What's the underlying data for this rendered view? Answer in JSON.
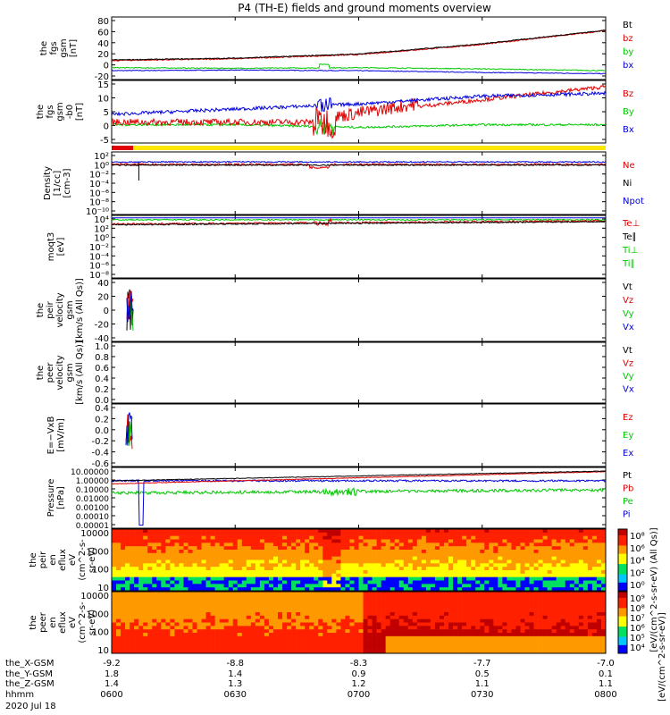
{
  "title": "P4 (TH-E) fields and ground moments overview",
  "colors": {
    "black": "#000000",
    "red": "#e00000",
    "green": "#00c800",
    "blue": "#0000dc",
    "yellow": "#ffe600",
    "white": "#ffffff"
  },
  "panels": [
    {
      "id": "fgs",
      "ylabel_lines": [
        "the",
        "fgs",
        "gsm",
        "[nT]"
      ],
      "yticks": [
        "80",
        "60",
        "40",
        "20",
        "0",
        "-20"
      ],
      "yrange": [
        -20,
        85
      ],
      "legend": [
        {
          "label": "Bt",
          "color": "black"
        },
        {
          "label": "bz",
          "color": "red"
        },
        {
          "label": "by",
          "color": "green"
        },
        {
          "label": "bx",
          "color": "blue"
        }
      ]
    },
    {
      "id": "fgs-dsl",
      "ylabel_lines": [
        "the",
        "fgs",
        "gsm",
        "-b0",
        "[nT]"
      ],
      "yticks": [
        "15",
        "10",
        "5",
        "0",
        "-5"
      ],
      "yrange": [
        -8,
        16
      ],
      "legend": [
        {
          "label": "Bz",
          "color": "red"
        },
        {
          "label": "By",
          "color": "green"
        },
        {
          "label": "Bx",
          "color": "blue"
        }
      ]
    },
    {
      "id": "density",
      "ylabel_lines": [
        "Density",
        "[1/cc]",
        "[cm-3]"
      ],
      "yticks": [
        "10²",
        "10⁰",
        "10⁻²",
        "10⁻⁴",
        "10⁻⁶",
        "10⁻⁸",
        "10⁻¹⁰"
      ],
      "legend": [
        {
          "label": "Ne",
          "color": "red"
        },
        {
          "label": "Ni",
          "color": "black"
        },
        {
          "label": "Npot",
          "color": "blue"
        }
      ]
    },
    {
      "id": "temperature",
      "ylabel_lines": [
        "moqt3",
        "[eV]"
      ],
      "yticks": [
        "10⁴",
        "10²",
        "10⁰",
        "10⁻²",
        "10⁻⁴",
        "10⁻⁶",
        "10⁻⁸"
      ],
      "legend": [
        {
          "label": "Te⊥",
          "color": "red"
        },
        {
          "label": "Te∥",
          "color": "black"
        },
        {
          "label": "Ti⊥",
          "color": "green"
        },
        {
          "label": "Ti∥",
          "color": "green"
        }
      ]
    },
    {
      "id": "peir-velocity",
      "ylabel_lines": [
        "the",
        "peir",
        "velocity",
        "gsm",
        "[km/s (All Qs)]"
      ],
      "yticks": [
        "40",
        "20",
        "0",
        "-20",
        "-40"
      ],
      "legend": [
        {
          "label": "Vt",
          "color": "black"
        },
        {
          "label": "Vz",
          "color": "red"
        },
        {
          "label": "Vy",
          "color": "green"
        },
        {
          "label": "Vx",
          "color": "blue"
        }
      ]
    },
    {
      "id": "peer-velocity",
      "ylabel_lines": [
        "the",
        "peer",
        "velocity",
        "gsm",
        "[km/s (All Qs)]"
      ],
      "yticks": [
        "1.0",
        "0.8",
        "0.6",
        "0.4",
        "0.2",
        "0.0"
      ],
      "legend": [
        {
          "label": "Vt",
          "color": "black"
        },
        {
          "label": "Vz",
          "color": "red"
        },
        {
          "label": "Vy",
          "color": "green"
        },
        {
          "label": "Vx",
          "color": "blue"
        }
      ]
    },
    {
      "id": "efield",
      "ylabel_lines": [
        "E=−VxB",
        "[mV/m]"
      ],
      "yticks": [
        "0.4",
        "0.2",
        "0.0",
        "-0.2",
        "-0.4",
        "-0.6"
      ],
      "legend": [
        {
          "label": "Ez",
          "color": "red"
        },
        {
          "label": "Ey",
          "color": "green"
        },
        {
          "label": "Ex",
          "color": "blue"
        }
      ]
    },
    {
      "id": "pressure",
      "ylabel_lines": [
        "Pressure",
        "[nPa]"
      ],
      "yticks": [
        "10.00000",
        "1.00000",
        "0.10000",
        "0.01000",
        "0.00100",
        "0.00010",
        "0.00001"
      ],
      "legend": [
        {
          "label": "Pt",
          "color": "black"
        },
        {
          "label": "Pb",
          "color": "red"
        },
        {
          "label": "Pe",
          "color": "green"
        },
        {
          "label": "Pi",
          "color": "blue"
        }
      ]
    },
    {
      "id": "peir-eflux",
      "ylabel_lines": [
        "the",
        "peir",
        "en",
        "eflux",
        "eV",
        "(cm^2-s-",
        "sr-eV)"
      ],
      "yticks": [
        "10000",
        "1000",
        "100",
        "10"
      ],
      "colorbar_ticks": [
        "10⁸",
        "10⁶",
        "10⁴",
        "10²",
        "10⁰"
      ]
    },
    {
      "id": "peer-eflux",
      "ylabel_lines": [
        "the",
        "peer",
        "en",
        "eflux",
        "eV",
        "(cm^2-s-",
        "sr-eV)"
      ],
      "yticks": [
        "10000",
        "1000",
        "100",
        "10"
      ],
      "colorbar_ticks": [
        "10⁹",
        "10⁸",
        "10⁷",
        "10⁶",
        "10⁵",
        "10⁴"
      ]
    }
  ],
  "colorbar_label": "[eV/(cm^2-s-sr-eV)]",
  "colorbar_label_2": "[eV/(cm^2-s-sr-eV) (All Qs)]",
  "xaxis": {
    "ticks": [
      "0600",
      "0630",
      "0700",
      "0730",
      "0800"
    ],
    "rows": [
      {
        "label": "the_X-GSM",
        "values": [
          "-9.2",
          "-8.8",
          "-8.3",
          "-7.7",
          "-7.0"
        ]
      },
      {
        "label": "the_Y-GSM",
        "values": [
          "1.8",
          "1.4",
          "0.9",
          "0.5",
          "0.1"
        ]
      },
      {
        "label": "the_Z-GSM",
        "values": [
          "1.4",
          "1.3",
          "1.2",
          "1.1",
          "1.1"
        ]
      },
      {
        "label": "hhmm",
        "values": [
          "0600",
          "0630",
          "0700",
          "0730",
          "0800"
        ]
      }
    ],
    "date": "2020 Jul 18"
  },
  "chart_data": [
    {
      "type": "line",
      "title": "the fgs gsm",
      "xlabel": "",
      "ylabel": "[nT]",
      "x": [
        "0600",
        "0630",
        "0700",
        "0730",
        "0800"
      ],
      "ylim": [
        -20,
        85
      ],
      "series": [
        {
          "name": "Bt",
          "values": [
            15,
            18,
            25,
            42,
            65
          ]
        },
        {
          "name": "bz",
          "values": [
            14,
            17,
            24,
            41,
            64
          ]
        },
        {
          "name": "by",
          "values": [
            2,
            1,
            2,
            0,
            -3
          ]
        },
        {
          "name": "bx",
          "values": [
            -3,
            -2,
            -3,
            -6,
            -8
          ]
        }
      ]
    },
    {
      "type": "line",
      "title": "the fgs gsm -b0",
      "xlabel": "",
      "ylabel": "[nT]",
      "x": [
        "0600",
        "0630",
        "0700",
        "0730",
        "0800"
      ],
      "ylim": [
        -8,
        16
      ],
      "series": [
        {
          "name": "Bz",
          "values": [
            0,
            0,
            0,
            10,
            14
          ]
        },
        {
          "name": "By",
          "values": [
            -1,
            -1,
            -2,
            -1,
            -1
          ]
        },
        {
          "name": "Bx",
          "values": [
            3,
            5,
            7,
            10,
            11
          ]
        }
      ]
    },
    {
      "type": "line",
      "title": "Density",
      "xlabel": "",
      "ylabel": "[cm-3]",
      "x": [
        "0600",
        "0630",
        "0700",
        "0730",
        "0800"
      ],
      "yscale": "log",
      "series": [
        {
          "name": "Ne",
          "values": [
            1,
            1,
            1,
            1,
            1
          ]
        },
        {
          "name": "Ni",
          "values": [
            1,
            1,
            1,
            1,
            1
          ]
        },
        {
          "name": "Npot",
          "values": [
            1,
            1,
            1,
            1,
            1
          ]
        }
      ]
    },
    {
      "type": "line",
      "title": "moqt3",
      "xlabel": "",
      "ylabel": "[eV]",
      "x": [
        "0600",
        "0630",
        "0700",
        "0730",
        "0800"
      ],
      "yscale": "log",
      "series": [
        {
          "name": "Te⊥",
          "values": [
            100,
            100,
            150,
            200,
            250
          ]
        },
        {
          "name": "Te∥",
          "values": [
            100,
            100,
            150,
            200,
            250
          ]
        },
        {
          "name": "Ti⊥",
          "values": [
            3000,
            3000,
            3000,
            3000,
            3000
          ]
        },
        {
          "name": "Ti∥",
          "values": [
            3000,
            3000,
            3000,
            3000,
            3000
          ]
        }
      ]
    },
    {
      "type": "line",
      "title": "the peir velocity gsm",
      "xlabel": "",
      "ylabel": "[km/s (All Qs)]",
      "x": [
        "0605",
        "0607",
        "0609"
      ],
      "ylim": [
        -40,
        40
      ],
      "series": [
        {
          "name": "Vt",
          "values": [
            20,
            30,
            10
          ]
        },
        {
          "name": "Vz",
          "values": [
            10,
            -10,
            5
          ]
        },
        {
          "name": "Vy",
          "values": [
            -10,
            15,
            -5
          ]
        },
        {
          "name": "Vx",
          "values": [
            0,
            -20,
            10
          ]
        }
      ]
    },
    {
      "type": "line",
      "title": "the peer velocity gsm",
      "xlabel": "",
      "ylabel": "[km/s (All Qs)]",
      "ylim": [
        0,
        1
      ],
      "series": []
    },
    {
      "type": "line",
      "title": "E=−VxB",
      "xlabel": "",
      "ylabel": "[mV/m]",
      "x": [
        "0605",
        "0607",
        "0609"
      ],
      "ylim": [
        -0.6,
        0.4
      ],
      "series": [
        {
          "name": "Ez",
          "values": [
            0.1,
            -0.3,
            0.2
          ]
        },
        {
          "name": "Ey",
          "values": [
            0.2,
            -0.1,
            -0.3
          ]
        },
        {
          "name": "Ex",
          "values": [
            -0.2,
            0.1,
            -0.4
          ]
        }
      ]
    },
    {
      "type": "line",
      "title": "Pressure",
      "xlabel": "",
      "ylabel": "[nPa]",
      "x": [
        "0600",
        "0630",
        "0700",
        "0730",
        "0800"
      ],
      "yscale": "log",
      "series": [
        {
          "name": "Pt",
          "values": [
            0.3,
            0.4,
            0.6,
            1.2,
            2.0
          ]
        },
        {
          "name": "Pb",
          "values": [
            0.1,
            0.2,
            0.4,
            1.0,
            1.8
          ]
        },
        {
          "name": "Pe",
          "values": [
            0.02,
            0.02,
            0.03,
            0.05,
            0.05
          ]
        },
        {
          "name": "Pi",
          "values": [
            0.25,
            0.25,
            0.25,
            0.3,
            0.2
          ]
        }
      ]
    },
    {
      "type": "heatmap",
      "title": "the peir en eflux",
      "ylabel": "eV",
      "y": [
        "10",
        "100",
        "1000",
        "10000"
      ],
      "x": [
        "0600",
        "0630",
        "0700",
        "0730",
        "0800"
      ]
    },
    {
      "type": "heatmap",
      "title": "the peer en eflux",
      "ylabel": "eV",
      "y": [
        "10",
        "100",
        "1000",
        "10000"
      ],
      "x": [
        "0600",
        "0630",
        "0700",
        "0730",
        "0800"
      ]
    }
  ]
}
